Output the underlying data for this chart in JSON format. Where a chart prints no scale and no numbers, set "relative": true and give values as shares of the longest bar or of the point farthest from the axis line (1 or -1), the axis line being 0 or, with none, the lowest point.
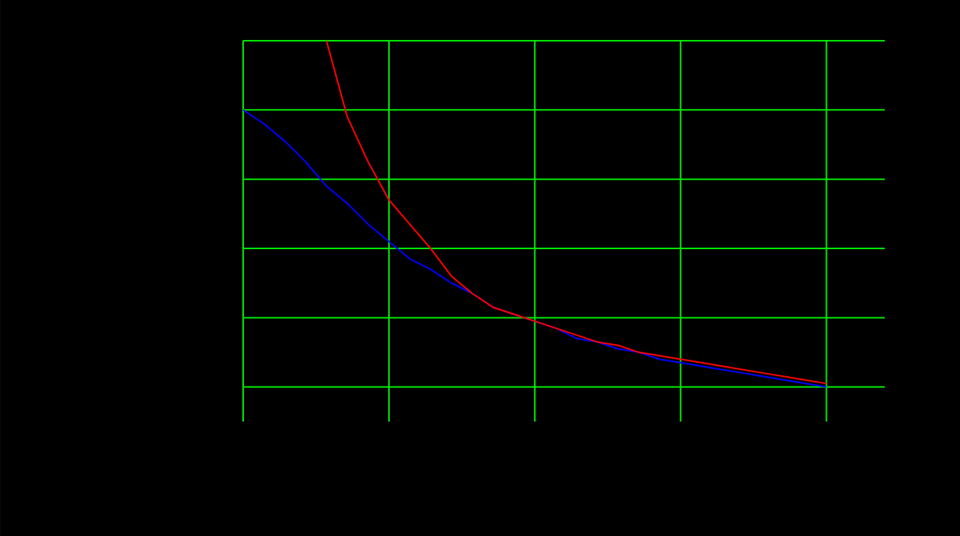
{
  "chart_data": {
    "type": "line",
    "relative": true,
    "grid": true,
    "categories": [
      null,
      null,
      null,
      null,
      null,
      null,
      null,
      null,
      null,
      null,
      null,
      null,
      null,
      null,
      null,
      null,
      null,
      null,
      null,
      null,
      null,
      null,
      null,
      null,
      null,
      null,
      null,
      null,
      null
    ],
    "series": [
      {
        "color": "#ff0000",
        "values": [
          null,
          null,
          null,
          null,
          1.0,
          0.78,
          0.65,
          0.54,
          0.47,
          0.4,
          0.32,
          0.27,
          0.23,
          0.21,
          0.19,
          0.17,
          0.15,
          0.13,
          0.12,
          0.1,
          0.09,
          0.08,
          0.07,
          0.06,
          0.05,
          0.04,
          0.03,
          0.02,
          0.01
        ]
      },
      {
        "color": "#0000ff",
        "values": [
          0.8,
          0.76,
          0.71,
          0.65,
          0.58,
          0.53,
          0.47,
          0.42,
          0.37,
          0.34,
          0.3,
          0.27,
          0.23,
          0.21,
          0.19,
          0.17,
          0.14,
          0.13,
          0.11,
          0.1,
          0.08,
          0.07,
          0.06,
          0.05,
          0.04,
          0.03,
          0.02,
          0.01,
          0.0
        ]
      }
    ]
  }
}
